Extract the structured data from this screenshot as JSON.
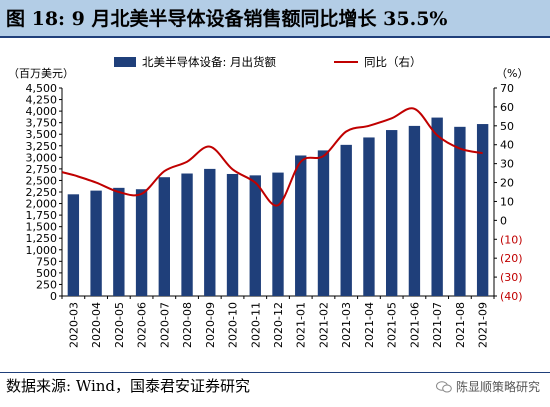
{
  "header": {
    "title": "图 18:  9 月北美半导体设备销售额同比增长 35.5%"
  },
  "footer": {
    "source": "数据来源:  Wind，国泰君安证券研究",
    "watermark": "陈显顺策略研究"
  },
  "colors": {
    "bar": "#1f3f7a",
    "line": "#c00000",
    "title_bg": "#b3cde6"
  },
  "chart_data": {
    "type": "bar",
    "categories": [
      "2020-03",
      "2020-04",
      "2020-05",
      "2020-06",
      "2020-07",
      "2020-08",
      "2020-09",
      "2020-10",
      "2020-11",
      "2020-12",
      "2021-01",
      "2021-02",
      "2021-03",
      "2021-04",
      "2021-05",
      "2021-06",
      "2021-07",
      "2021-08",
      "2021-09"
    ],
    "series": [
      {
        "name": "北美半导体设备: 月出货额",
        "type": "bar",
        "axis": "left",
        "values": [
          2200,
          2280,
          2340,
          2310,
          2570,
          2650,
          2750,
          2640,
          2610,
          2670,
          3040,
          3150,
          3270,
          3430,
          3590,
          3680,
          3860,
          3660,
          3720
        ]
      },
      {
        "name": "同比（右）",
        "type": "line",
        "axis": "right",
        "values": [
          24,
          20,
          15,
          14,
          26,
          31,
          39,
          27,
          20,
          8,
          31,
          34,
          47,
          50,
          54,
          59,
          45,
          38,
          35.5
        ]
      }
    ],
    "left_axis": {
      "label": "（百万美元）",
      "ylim": [
        0,
        4500
      ],
      "ticks": [
        0,
        250,
        500,
        750,
        1000,
        1250,
        1500,
        1750,
        2000,
        2250,
        2500,
        2750,
        3000,
        3250,
        3500,
        3750,
        4000,
        4250,
        4500
      ],
      "tick_labels": [
        "0",
        "250",
        "500",
        "750",
        "1,000",
        "1,250",
        "1,500",
        "1,750",
        "2,000",
        "2,250",
        "2,500",
        "2,750",
        "3,000",
        "3,250",
        "3,500",
        "3,750",
        "4,000",
        "4,250",
        "4,500"
      ]
    },
    "right_axis": {
      "label": "（%）",
      "ylim": [
        -40,
        70
      ],
      "ticks": [
        -40,
        -30,
        -20,
        -10,
        0,
        10,
        20,
        30,
        40,
        50,
        60,
        70
      ],
      "tick_labels": [
        "(40)",
        "(30)",
        "(20)",
        "(10)",
        "0",
        "10",
        "20",
        "30",
        "40",
        "50",
        "60",
        "70"
      ]
    },
    "legend_position": "top",
    "grid": false
  }
}
